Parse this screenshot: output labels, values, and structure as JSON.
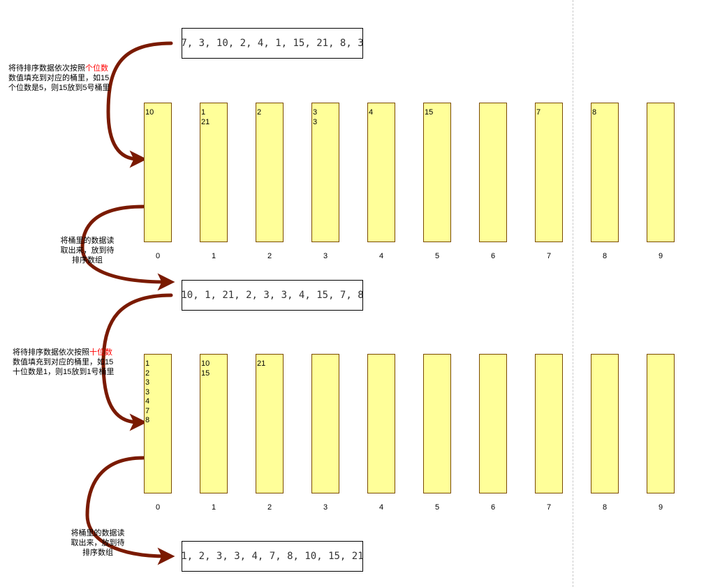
{
  "arrays": {
    "initial": "7, 3, 10, 2, 4, 1, 15, 21, 8, 3",
    "after_ones": "10, 1, 21, 2, 3, 3, 4, 15, 7, 8",
    "final": "1, 2, 3, 3, 4, 7, 8, 10, 15, 21"
  },
  "bucket_labels": [
    "0",
    "1",
    "2",
    "3",
    "4",
    "5",
    "6",
    "7",
    "8",
    "9"
  ],
  "pass1": {
    "buckets": [
      [
        "10"
      ],
      [
        "1",
        "21"
      ],
      [
        "2"
      ],
      [
        "3",
        "3"
      ],
      [
        "4"
      ],
      [
        "15"
      ],
      [],
      [
        "7"
      ],
      [
        "8"
      ],
      []
    ]
  },
  "pass2": {
    "buckets": [
      [
        "1",
        "2",
        "3",
        "3",
        "4",
        "7",
        "8"
      ],
      [
        "10",
        "15"
      ],
      [
        "21"
      ],
      [],
      [],
      [],
      [],
      [],
      [],
      []
    ]
  },
  "notes": {
    "ones": {
      "line1_prefix": "将待排序数据依次按照",
      "line1_highlight": "个位数",
      "line2": "数值填充到对应的桶里，如15",
      "line3": "个位数是5，则15放到5号桶里"
    },
    "collect1": {
      "line1": "将桶里的数据读",
      "line2": "取出来，放到待",
      "line3": "排序数组"
    },
    "tens": {
      "line1_prefix": "将待排序数据依次按照",
      "line1_highlight": "十位数",
      "line2": "数值填充到对应的桶里，如15",
      "line3": "十位数是1，则15放到1号桶里"
    },
    "collect2": {
      "line1": "将桶里的数据读",
      "line2": "取出来，放到待",
      "line3": "排序数组"
    }
  },
  "colors": {
    "bucket_fill": "#ffff99",
    "bucket_border": "#7a4a00",
    "arrow": "#7a1a00",
    "highlight": "#ff0000"
  }
}
